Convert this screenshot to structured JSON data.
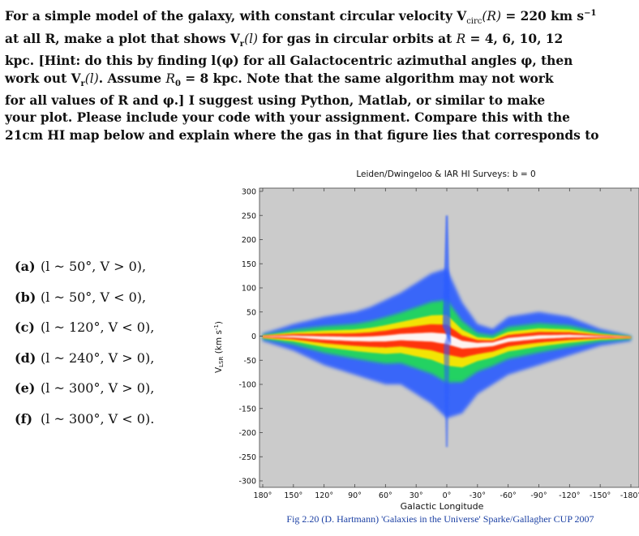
{
  "problem": {
    "text": "For a simple model of the galaxy, with constant circular velocity V_circ(R) = 220 km s^-1 at all R, make a plot that shows V_r(l) for gas in circular orbits at R = 4, 6, 10, 12 kpc. [Hint: do this by finding l(φ) for all Galactocentric azimuthal angles φ, then work out V_r(l). Assume R_0 = 8 kpc. Note that the same algorithm may not work for all values of R and φ.] I suggest using Python, Matlab, or similar to make your plot. Please include your code with your assignment. Compare this with the 21cm HI map below and explain where the gas in that figure lies that corresponds to",
    "lines": [
      "For a simple model of the galaxy, with constant circular velocity V",
      "at all R, make a plot that shows V",
      "kpc. [Hint: do this by finding l(φ) for all Galactocentric azimuthal angles φ, then",
      "work out V",
      "for all values of R and φ.] I suggest using Python, Matlab, or similar to make",
      "your plot. Please include your code with your assignment. Compare this with the",
      "21cm HI map below and explain where the gas in that figure lies that corresponds to"
    ]
  },
  "items": [
    {
      "marker": "(a)",
      "expr": "(l ~ 50°, V > 0),"
    },
    {
      "marker": "(b)",
      "expr": "(l ~ 50°, V < 0),"
    },
    {
      "marker": "(c)",
      "expr": "(l ~ 120°, V < 0),"
    },
    {
      "marker": "(d)",
      "expr": "(l ~ 240°, V > 0),"
    },
    {
      "marker": "(e)",
      "expr": "(l ~ 300°, V > 0),"
    },
    {
      "marker": "(f)",
      "expr": "(l ~ 300°, V < 0)."
    }
  ],
  "figure": {
    "title": "Leiden/Dwingeloo & IAR HI Surveys:  b = 0",
    "ylabel": "V_LSR (km s^-1)",
    "xlabel": "Galactic Longitude",
    "caption": "Fig 2.20 (D. Hartmann) 'Galaxies in the Universe' Sparke/Gallagher CUP 2007",
    "yticks": [
      "300",
      "250",
      "200",
      "150",
      "100",
      "50",
      "0",
      "-50",
      "-100",
      "-150",
      "-200",
      "-250",
      "-300"
    ],
    "xticks": [
      "180°",
      "150°",
      "120°",
      "90°",
      "60°",
      "30°",
      "0°",
      "-30°",
      "-60°",
      "-90°",
      "-120°",
      "-150°",
      "-180°"
    ],
    "colors": {
      "background": "#cbcbcb",
      "low": "#2a5cff",
      "mid": "#22d85a",
      "high": "#ffe600",
      "peak": "#ff2a10",
      "max": "#ffffff",
      "caption": "#1a3fa3"
    }
  },
  "chart_data": {
    "type": "heatmap",
    "title": "Leiden/Dwingeloo & IAR HI Surveys:  b = 0",
    "xlabel": "Galactic Longitude",
    "ylabel": "V_LSR (km s^-1)",
    "xlim": [
      180,
      -180
    ],
    "ylim": [
      -300,
      300
    ],
    "x_ticks": [
      180,
      150,
      120,
      90,
      60,
      30,
      0,
      -30,
      -60,
      -90,
      -120,
      -150,
      -180
    ],
    "y_ticks": [
      300,
      250,
      200,
      150,
      100,
      50,
      0,
      -50,
      -100,
      -150,
      -200,
      -250,
      -300
    ],
    "ridge": {
      "l": [
        180,
        150,
        120,
        90,
        75,
        60,
        45,
        30,
        15,
        0,
        -15,
        -30,
        -45,
        -60,
        -90,
        -120,
        -150,
        -180
      ],
      "v_upper": [
        5,
        25,
        40,
        50,
        60,
        75,
        90,
        110,
        130,
        140,
        70,
        25,
        15,
        40,
        50,
        40,
        15,
        0
      ],
      "v_lower": [
        -10,
        -30,
        -60,
        -80,
        -90,
        -100,
        -100,
        -120,
        -140,
        -170,
        -160,
        -120,
        -100,
        -80,
        -60,
        -40,
        -20,
        -10
      ]
    }
  }
}
